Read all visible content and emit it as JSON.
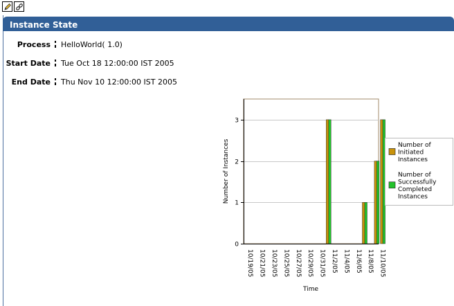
{
  "header": {
    "title": "Instance State"
  },
  "details": [
    {
      "label": "Process",
      "value": "HelloWorld( 1.0)"
    },
    {
      "label": "Start Date",
      "value": "Tue Oct 18 12:00:00 IST 2005"
    },
    {
      "label": "End Date",
      "value": "Thu Nov 10 12:00:00 IST 2005"
    }
  ],
  "chart_data": {
    "type": "bar",
    "xlabel": "Time",
    "ylabel": "Number of Instances",
    "ylim": [
      0,
      3.5
    ],
    "yticks": [
      0,
      1,
      2,
      3
    ],
    "xticks": [
      "10/19/05",
      "10/21/05",
      "10/23/05",
      "10/25/05",
      "10/27/05",
      "10/29/05",
      "10/31/05",
      "11/2/05",
      "11/4/05",
      "11/6/05",
      "11/8/05",
      "11/10/05"
    ],
    "x": [
      "11/1/05",
      "11/7/05",
      "11/9/05",
      "11/10/05"
    ],
    "series": [
      {
        "name": "Number of Initiated Instances",
        "color": "#c8920a",
        "values": [
          3,
          1,
          2,
          3
        ]
      },
      {
        "name": "Number of Successfully Completed Instances",
        "color": "#22c22a",
        "values": [
          3,
          1,
          2,
          3
        ]
      }
    ],
    "grid": true,
    "legend": "right"
  }
}
